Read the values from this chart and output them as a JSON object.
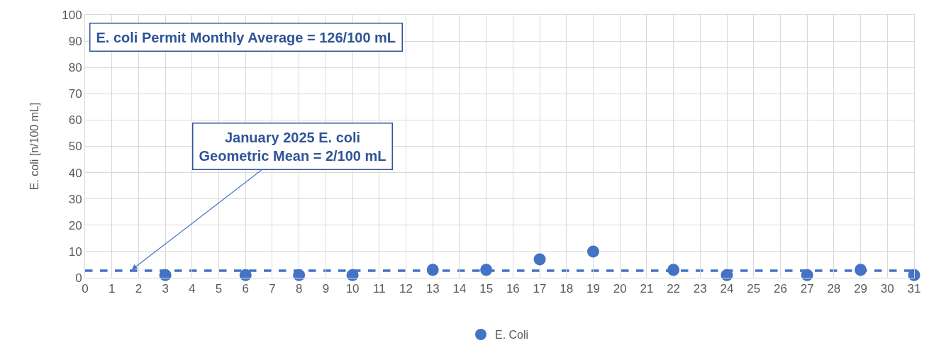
{
  "chart_data": {
    "type": "scatter",
    "ylabel": "E. coli [n/100 mL]",
    "x": [
      3,
      6,
      8,
      10,
      13,
      15,
      17,
      19,
      22,
      24,
      27,
      29,
      31
    ],
    "series": [
      {
        "name": "E. Coli",
        "color": "#4472c4",
        "values": [
          1,
          1,
          1,
          1,
          3,
          3,
          7,
          10,
          3,
          1,
          1,
          3,
          1
        ]
      }
    ],
    "marker": "circle",
    "xlim": [
      0,
      31
    ],
    "xticks": [
      0,
      1,
      2,
      3,
      4,
      5,
      6,
      7,
      8,
      9,
      10,
      11,
      12,
      13,
      14,
      15,
      16,
      17,
      18,
      19,
      20,
      21,
      22,
      23,
      24,
      25,
      26,
      27,
      28,
      29,
      30,
      31
    ],
    "ylim": [
      0,
      100
    ],
    "yticks": [
      0,
      10,
      20,
      30,
      40,
      50,
      60,
      70,
      80,
      90,
      100
    ],
    "grid": true,
    "legend": "bottom",
    "ref_lines": [
      {
        "axis": "y",
        "value": 2.7,
        "color": "#4472c4",
        "line_style": "dashed"
      }
    ],
    "annotations": [
      "E. coli Permit Monthly Average = 126/100 mL",
      {
        "text": "January 2025 E. coli\nGeometric Mean = 2/100 mL",
        "x": 1.7,
        "y": 2.7
      }
    ]
  }
}
